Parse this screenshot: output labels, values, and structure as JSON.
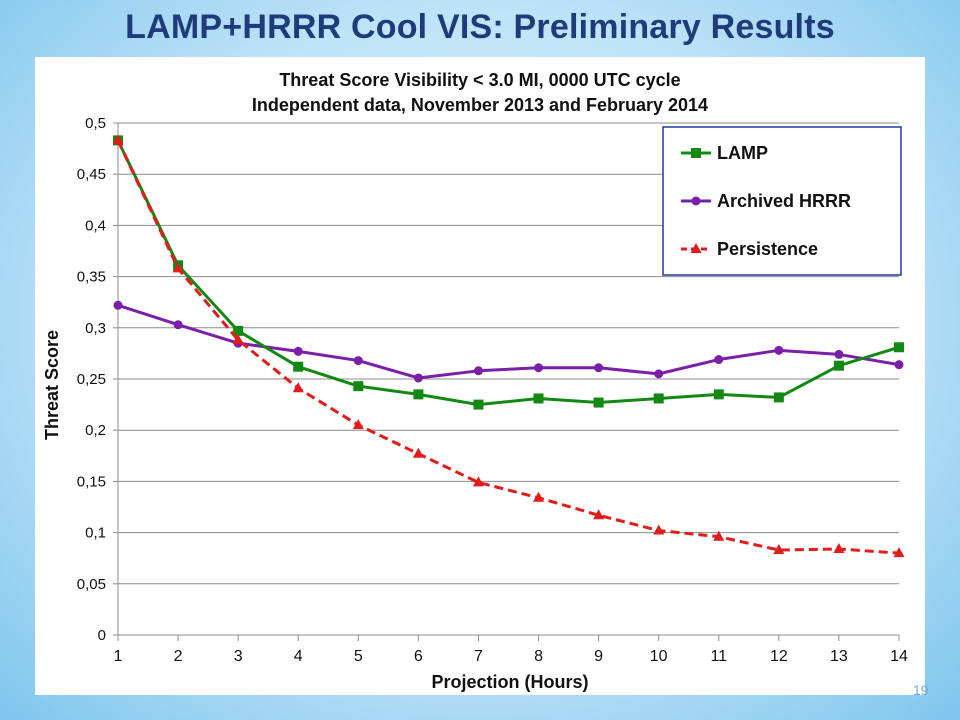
{
  "slide": {
    "title": "LAMP+HRRR Cool VIS: Preliminary Results",
    "page_number": "19"
  },
  "colors": {
    "title": "#1f3b7a",
    "lamp": "#138913",
    "hrrr": "#7a1fa8",
    "persistence": "#e21b1b",
    "legend_border": "#1f3b9a"
  },
  "chart_data": {
    "type": "line",
    "title_line1": "Threat Score Visibility < 3.0 MI, 0000 UTC cycle",
    "title_line2": "Independent data, November 2013 and February 2014",
    "xlabel": "Projection  (Hours)",
    "ylabel": "Threat Score",
    "x": [
      1,
      2,
      3,
      4,
      5,
      6,
      7,
      8,
      9,
      10,
      11,
      12,
      13,
      14
    ],
    "ylim": [
      0,
      0.5
    ],
    "yticks": [
      "0",
      "0,05",
      "0,1",
      "0,15",
      "0,2",
      "0,25",
      "0,3",
      "0,35",
      "0,4",
      "0,45",
      "0,5"
    ],
    "grid": "horizontal",
    "legend_position": "top-right",
    "series": [
      {
        "name": "LAMP",
        "color": "#138913",
        "marker": "square",
        "dash": "solid",
        "values": [
          0.483,
          0.361,
          0.297,
          0.262,
          0.243,
          0.235,
          0.225,
          0.231,
          0.227,
          0.231,
          0.235,
          0.232,
          0.263,
          0.281
        ]
      },
      {
        "name": "Archived HRRR",
        "color": "#7a1fa8",
        "marker": "circle",
        "dash": "solid",
        "values": [
          0.322,
          0.303,
          0.285,
          0.277,
          0.268,
          0.251,
          0.258,
          0.261,
          0.261,
          0.255,
          0.269,
          0.278,
          0.274,
          0.264
        ]
      },
      {
        "name": "Persistence",
        "color": "#e21b1b",
        "marker": "triangle",
        "dash": "dashed",
        "values": [
          0.483,
          0.358,
          0.288,
          0.241,
          0.205,
          0.177,
          0.149,
          0.134,
          0.117,
          0.102,
          0.096,
          0.083,
          0.084,
          0.08
        ]
      }
    ]
  }
}
